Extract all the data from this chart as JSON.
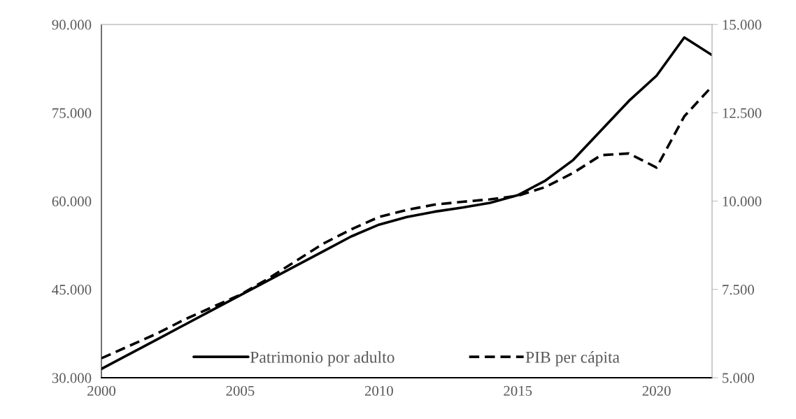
{
  "chart_data": {
    "type": "line",
    "x": [
      2000,
      2001,
      2002,
      2003,
      2004,
      2005,
      2006,
      2007,
      2008,
      2009,
      2010,
      2011,
      2012,
      2013,
      2014,
      2015,
      2016,
      2017,
      2018,
      2019,
      2020,
      2021,
      2022
    ],
    "series": [
      {
        "name": "Patrimonio por adulto",
        "color": "#000000",
        "line_style": "solid",
        "values": [
          31500,
          34000,
          36500,
          39000,
          41500,
          44000,
          46500,
          49000,
          51500,
          54000,
          56000,
          57300,
          58200,
          58900,
          59700,
          61000,
          63500,
          67000,
          72000,
          77000,
          81300,
          87800,
          84800
        ]
      },
      {
        "name": "PIB per cápita",
        "color": "#000000",
        "line_style": "dashed",
        "axis": "y2",
        "values": [
          5550,
          5900,
          6250,
          6650,
          7000,
          7350,
          7800,
          8300,
          8800,
          9200,
          9550,
          9750,
          9900,
          9980,
          10050,
          10150,
          10400,
          10800,
          11300,
          11350,
          10950,
          12400,
          13250
        ]
      }
    ],
    "xlim": [
      2000,
      2022
    ],
    "xticks": [
      2000,
      2005,
      2010,
      2015,
      2020
    ],
    "ylim": [
      30000,
      90000
    ],
    "yticks": [
      {
        "value": 30000,
        "label": "30.000"
      },
      {
        "value": 45000,
        "label": "45.000"
      },
      {
        "value": 60000,
        "label": "60.000"
      },
      {
        "value": 75000,
        "label": "75.000"
      },
      {
        "value": 90000,
        "label": "90.000"
      }
    ],
    "y2lim": [
      5000,
      15000
    ],
    "y2ticks": [
      {
        "value": 5000,
        "label": "5.000"
      },
      {
        "value": 7500,
        "label": "7.500"
      },
      {
        "value": 10000,
        "label": "10.000"
      },
      {
        "value": 12500,
        "label": "12.500"
      },
      {
        "value": 15000,
        "label": "15.000"
      }
    ],
    "grid": false,
    "legend": "bottom",
    "marker": "none"
  }
}
